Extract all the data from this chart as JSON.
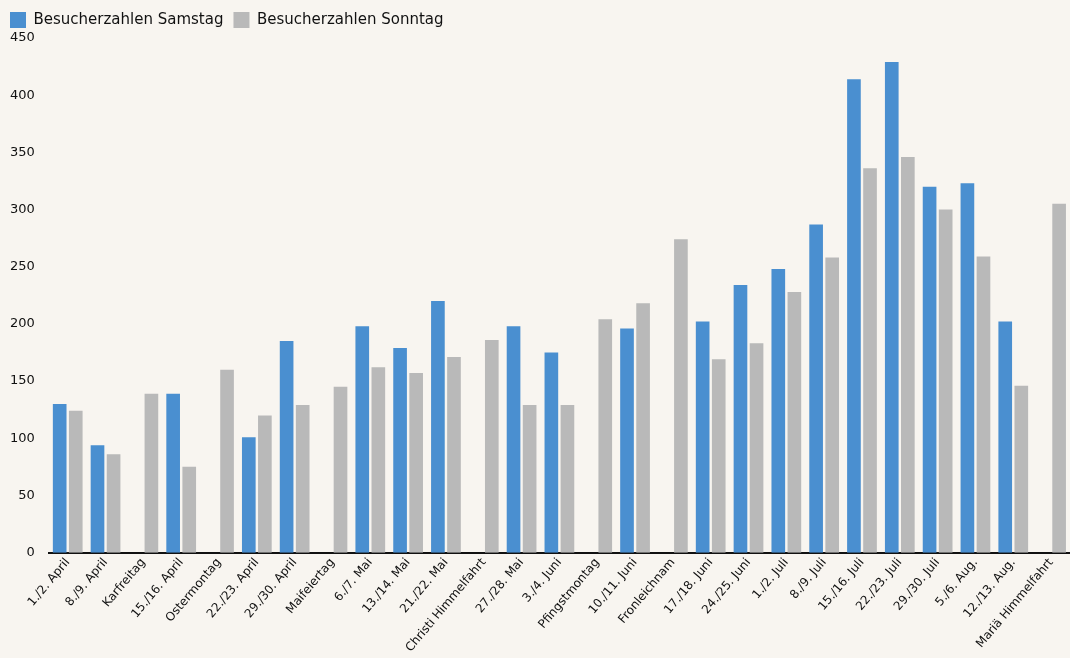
{
  "chart_data": {
    "type": "bar",
    "categories": [
      "1./2. April",
      "8./9. April",
      "Karfreitag",
      "15./16. April",
      "Ostermontag",
      "22./23. April",
      "29./30. April",
      "Maifeiertag",
      "6./7. Mai",
      "13./14. Mai",
      "21./22. Mai",
      "Christi Himmelfahrt",
      "27./28. Mai",
      "3./4. Juni",
      "Pfingstmontag",
      "10./11. Juni",
      "Fronleichnam",
      "17./18. Juni",
      "24./25. Juni",
      "1./2. Juli",
      "8./9. Juli",
      "15./16. Juli",
      "22./23. Juli",
      "29./30. Juli",
      "5./6. Aug.",
      "12./13. Aug.",
      "Mariä Himmelfahrt"
    ],
    "series": [
      {
        "name": "Besucherzahlen Samstag",
        "color": "#4a8fd0",
        "values": [
          130,
          94,
          null,
          139,
          null,
          101,
          185,
          null,
          198,
          179,
          220,
          null,
          198,
          175,
          null,
          196,
          null,
          202,
          234,
          248,
          287,
          414,
          429,
          320,
          323,
          202,
          null
        ]
      },
      {
        "name": "Besucherzahlen Sonntag",
        "color": "#b9b9b9",
        "values": [
          124,
          86,
          139,
          75,
          160,
          120,
          129,
          145,
          162,
          157,
          171,
          186,
          129,
          129,
          204,
          218,
          274,
          169,
          183,
          228,
          258,
          336,
          346,
          300,
          259,
          146,
          305
        ]
      }
    ],
    "ylim": [
      0,
      450
    ],
    "yticks": [
      0,
      50,
      100,
      150,
      200,
      250,
      300,
      350,
      400,
      450
    ],
    "grid": false,
    "legend": "top left"
  }
}
